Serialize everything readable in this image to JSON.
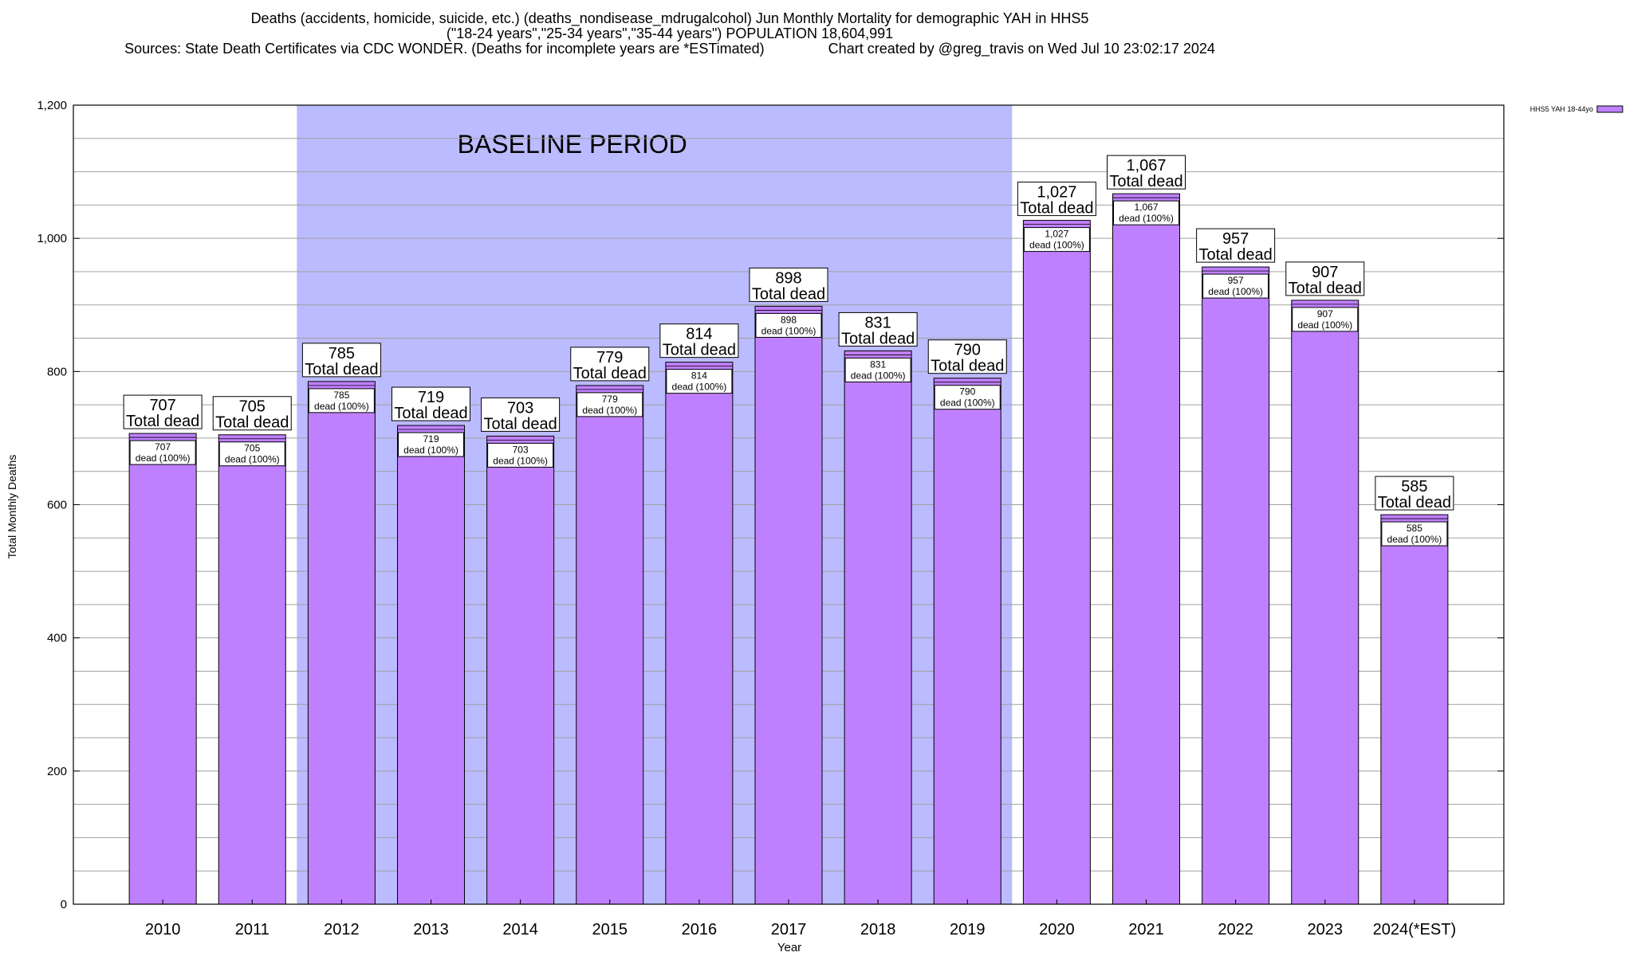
{
  "title": {
    "line1": "Deaths (accidents, homicide, suicide, etc.) (deaths_nondisease_mdrugalcohol) Jun Monthly Mortality for demographic YAH in HHS5",
    "line2": "(\"18-24 years\",\"25-34 years\",\"35-44 years\") POPULATION 18,604,991",
    "line3": "Sources: State Death Certificates via CDC WONDER. (Deaths for incomplete years are *ESTimated)                Chart created by @greg_travis on Wed Jul 10 23:02:17 2024"
  },
  "colors": {
    "bar_fill": "#bf80ff",
    "bar_stroke": "#000000",
    "baseline_band": "#bbbbff",
    "grid": "#a0a0a0"
  },
  "chart_data": {
    "type": "bar",
    "xlabel": "Year",
    "ylabel": "Total Monthly Deaths",
    "ylim": [
      0,
      1200
    ],
    "yticks": [
      0,
      200,
      400,
      600,
      800,
      1000,
      1200
    ],
    "ytick_labels": [
      "0",
      "200",
      "400",
      "600",
      "800",
      "1,000",
      "1,200"
    ],
    "grid": true,
    "legend": {
      "placement": "top-right",
      "label": "HHS5 YAH 18-44yo"
    },
    "categories": [
      "2010",
      "2011",
      "2012",
      "2013",
      "2014",
      "2015",
      "2016",
      "2017",
      "2018",
      "2019",
      "2020",
      "2021",
      "2022",
      "2023",
      "2024(*EST)"
    ],
    "series": [
      {
        "name": "HHS5 YAH 18-44yo",
        "values": [
          707,
          705,
          785,
          719,
          703,
          779,
          814,
          898,
          831,
          790,
          1027,
          1067,
          957,
          907,
          585
        ]
      }
    ],
    "value_labels": [
      "707",
      "705",
      "785",
      "719",
      "703",
      "779",
      "814",
      "898",
      "831",
      "790",
      "1,027",
      "1,067",
      "957",
      "907",
      "585"
    ],
    "total_label_text": "Total dead",
    "inner_label_text": "dead (100%)",
    "baseline_period": {
      "label": "BASELINE PERIOD",
      "from": "2012",
      "to": "2019"
    }
  }
}
